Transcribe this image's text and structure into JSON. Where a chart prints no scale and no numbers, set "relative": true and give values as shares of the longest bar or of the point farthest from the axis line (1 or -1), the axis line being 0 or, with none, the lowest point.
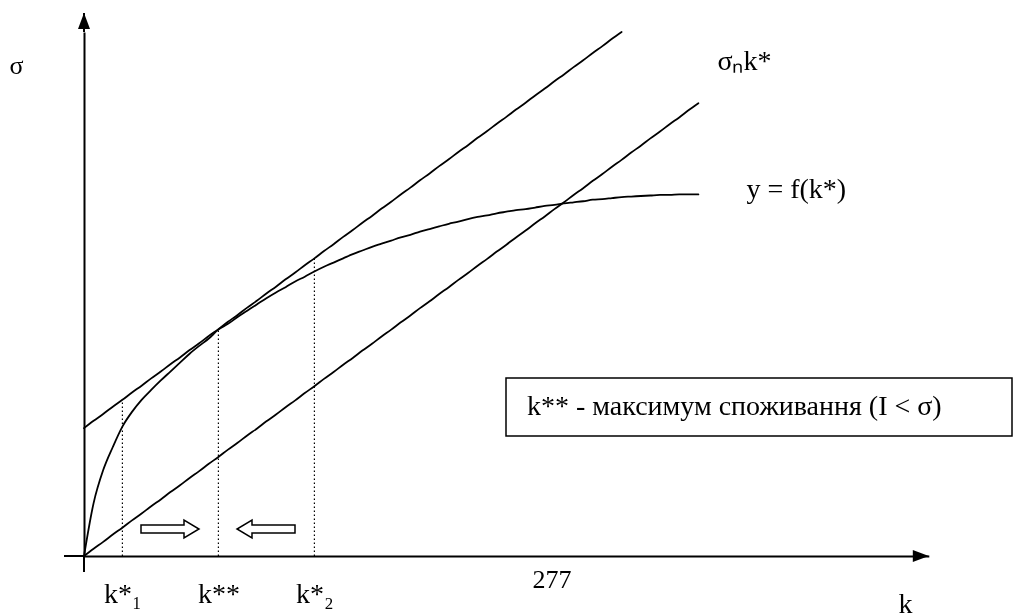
{
  "chart_data": {
    "type": "line",
    "relative": true,
    "xlabel": "k",
    "ylabel": "σ",
    "categories": [
      null,
      null,
      null,
      null,
      "k*₁",
      null,
      null,
      null,
      null,
      null,
      null,
      null,
      null,
      null,
      "k**",
      null,
      null,
      null,
      null,
      null,
      null,
      null,
      null,
      null,
      "k*₂",
      null,
      null,
      null,
      null,
      null,
      null,
      null,
      null,
      null,
      null,
      null,
      null,
      null,
      null,
      null,
      null,
      null,
      null,
      null,
      null,
      null,
      null,
      null,
      null,
      null,
      null,
      null,
      null,
      null,
      null,
      null,
      null,
      null,
      null,
      null,
      null,
      null,
      null,
      null,
      null,
      null,
      null,
      null,
      null,
      null,
      null,
      null,
      null,
      null,
      null,
      null,
      null,
      null,
      null,
      null,
      null,
      null,
      null,
      null,
      null,
      null,
      null,
      null,
      null
    ],
    "series": [
      {
        "color": "#000000",
        "values": [
          0.244,
          0.258,
          0.271,
          0.285,
          0.298,
          0.312,
          0.325,
          0.339,
          0.352,
          0.366,
          0.379,
          0.393,
          0.406,
          0.42,
          0.433,
          0.447,
          0.46,
          0.474,
          0.487,
          0.501,
          0.514,
          0.528,
          0.541,
          0.555,
          0.568,
          0.582,
          0.595,
          0.609,
          0.622,
          0.636,
          0.649,
          0.663,
          0.676,
          0.69,
          0.703,
          0.717,
          0.73,
          0.744,
          0.757,
          0.771,
          0.784,
          0.798,
          0.811,
          0.825,
          0.838,
          0.852,
          0.865,
          0.879,
          0.892,
          0.906,
          0.919,
          0.933,
          0.946,
          0.96,
          0.973,
          0.987,
          1.0,
          null,
          null,
          null,
          null,
          null,
          null,
          null,
          null,
          null,
          null,
          null,
          null,
          null,
          null,
          null,
          null,
          null,
          null,
          null,
          null,
          null,
          null,
          null,
          null,
          null,
          null,
          null,
          null,
          null,
          null,
          null,
          null
        ]
      },
      {
        "name": "y = f(k*)",
        "color": "#000000",
        "values": [
          0,
          0.101,
          0.164,
          0.208,
          0.247,
          0.275,
          0.298,
          0.317,
          0.335,
          0.352,
          0.369,
          0.386,
          0.401,
          0.415,
          0.432,
          0.443,
          0.456,
          0.468,
          0.48,
          0.492,
          0.503,
          0.513,
          0.524,
          0.533,
          0.543,
          0.552,
          0.56,
          0.568,
          0.576,
          0.583,
          0.59,
          0.596,
          0.602,
          0.608,
          0.613,
          0.619,
          0.624,
          0.629,
          0.634,
          0.638,
          0.643,
          0.647,
          0.65,
          0.654,
          0.657,
          0.66,
          0.662,
          0.665,
          0.668,
          0.67,
          0.673,
          0.675,
          0.677,
          0.68,
          0.681,
          0.683,
          0.685,
          0.686,
          0.687,
          0.688,
          0.689,
          0.689,
          0.69,
          0.69,
          0.69,
          null,
          null,
          null,
          null,
          null,
          null,
          null,
          null,
          null,
          null,
          null,
          null,
          null,
          null,
          null,
          null,
          null,
          null,
          null,
          null,
          null,
          null,
          null,
          null
        ]
      },
      {
        "name": "σₙk*",
        "color": "#000000",
        "values": [
          0,
          0.014,
          0.027,
          0.041,
          0.054,
          0.068,
          0.081,
          0.095,
          0.108,
          0.122,
          0.135,
          0.149,
          0.162,
          0.176,
          0.189,
          0.203,
          0.216,
          0.23,
          0.243,
          0.257,
          0.27,
          0.284,
          0.297,
          0.311,
          0.324,
          0.338,
          0.351,
          0.365,
          0.378,
          0.392,
          0.405,
          0.419,
          0.432,
          0.446,
          0.459,
          0.473,
          0.486,
          0.5,
          0.513,
          0.527,
          0.54,
          0.554,
          0.567,
          0.581,
          0.594,
          0.608,
          0.621,
          0.635,
          0.648,
          0.662,
          0.675,
          0.689,
          0.702,
          0.716,
          0.729,
          0.743,
          0.756,
          0.77,
          0.783,
          0.797,
          0.81,
          0.824,
          0.837,
          0.851,
          0.864,
          null,
          null,
          null,
          null,
          null,
          null,
          null,
          null,
          null,
          null,
          null,
          null,
          null,
          null,
          null,
          null,
          null,
          null,
          null,
          null,
          null,
          null,
          null,
          null
        ]
      }
    ],
    "ref_lines": [
      {
        "axis": "x",
        "value": "k*₁",
        "line_style": "dotted"
      },
      {
        "axis": "x",
        "value": "k**",
        "line_style": "dotted"
      },
      {
        "axis": "x",
        "value": "k*₂",
        "line_style": "dotted"
      }
    ],
    "annotations": [
      "k** - максимум споживання (I < σ)",
      "277"
    ]
  }
}
